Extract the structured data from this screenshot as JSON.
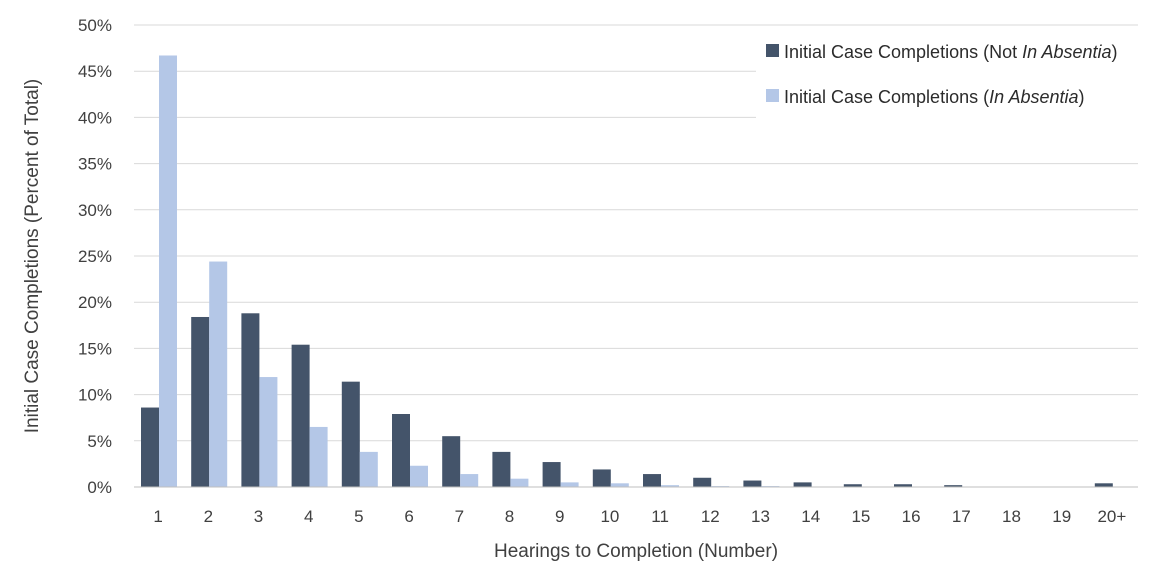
{
  "chart_data": {
    "type": "bar",
    "categories": [
      "1",
      "2",
      "3",
      "4",
      "5",
      "6",
      "7",
      "8",
      "9",
      "10",
      "11",
      "12",
      "13",
      "14",
      "15",
      "16",
      "17",
      "18",
      "19",
      "20+"
    ],
    "series": [
      {
        "name": "Initial Case Completions (Not In Absentia)",
        "name_parts": [
          "Initial Case Completions (Not ",
          "In Absentia",
          ")"
        ],
        "color": "#44546a",
        "values": [
          8.6,
          18.4,
          18.8,
          15.4,
          11.4,
          7.9,
          5.5,
          3.8,
          2.7,
          1.9,
          1.4,
          1.0,
          0.7,
          0.5,
          0.3,
          0.3,
          0.2,
          0.0,
          0.0,
          0.4
        ]
      },
      {
        "name": "Initial Case Completions (In Absentia)",
        "name_parts": [
          "Initial Case Completions (",
          "In Absentia",
          ")"
        ],
        "color": "#b4c7e7",
        "values": [
          46.7,
          24.4,
          11.9,
          6.5,
          3.8,
          2.3,
          1.4,
          0.9,
          0.5,
          0.4,
          0.2,
          0.1,
          0.1,
          0.0,
          0.0,
          0.0,
          0.0,
          0.0,
          0.0,
          0.0
        ]
      }
    ],
    "y_ticks": [
      "0%",
      "5%",
      "10%",
      "15%",
      "20%",
      "25%",
      "30%",
      "35%",
      "40%",
      "45%",
      "50%"
    ],
    "ylim": [
      0,
      50
    ],
    "xlabel": "Hearings to Completion (Number)",
    "ylabel": "Initial Case Completions (Percent of Total)",
    "grid": true,
    "legend": "top-right"
  }
}
